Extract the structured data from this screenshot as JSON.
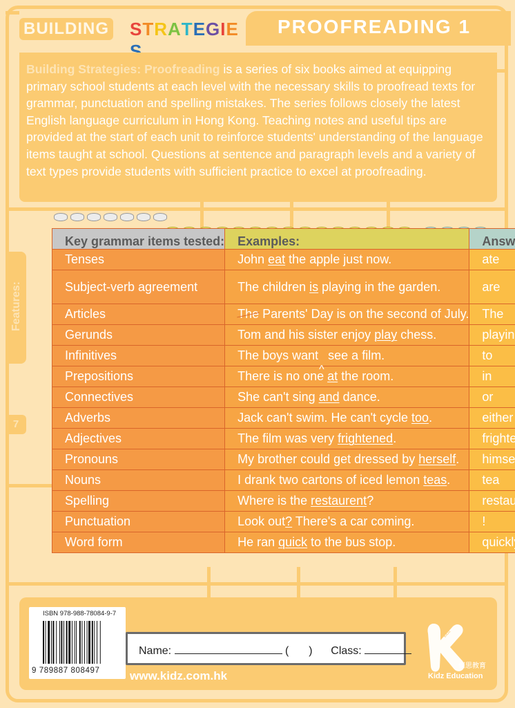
{
  "header": {
    "brand_part1": "BUILDING",
    "brand_part2_letters": [
      "S",
      "T",
      "R",
      "A",
      "T",
      "E",
      "G",
      "I",
      "E",
      "S"
    ],
    "brand_part2_colors": [
      "#e8453c",
      "#f28b26",
      "#f5c518",
      "#7cc242",
      "#2eb6c8",
      "#2b6fb6",
      "#6c4fa3",
      "#e8453c",
      "#f28b26",
      "#2b6fb6"
    ],
    "title": "PROOFREADING 1"
  },
  "intro": {
    "lead": "Building Strategies: Proofreading",
    "text": " is a series of six books aimed at equipping primary school students at each level with the necessary skills to proofread texts for grammar, punctuation and spelling mistakes. The series follows closely the latest English language curriculum in Hong Kong. Teaching notes and useful tips are provided at the start of each unit to reinforce students' understanding of the language items taught at school. Questions at sentence and paragraph levels and a variety of text types provide students with sufficient practice to excel at proofreading."
  },
  "side": {
    "features_label": "Features:",
    "page_number": "7"
  },
  "table": {
    "headers": {
      "key": "Key grammar items tested:",
      "examples": "Examples:",
      "answers": "Answers"
    },
    "rows": [
      {
        "item": "Tenses",
        "pre": "John ",
        "mark": "eat",
        "post": " the apple just now.",
        "answer": "ate",
        "style": "u"
      },
      {
        "item": "Subject-verb agreement",
        "pre": "The children ",
        "mark": "is",
        "post": " playing in the garden.",
        "answer": "are",
        "style": "u"
      },
      {
        "item": "Articles",
        "pre": "",
        "mark": "The",
        "post": " Parents' Day is on the second of July.",
        "answer": "The",
        "style": "strike"
      },
      {
        "item": "Gerunds",
        "pre": "Tom and his sister enjoy ",
        "mark": "play",
        "post": " chess.",
        "answer": "playing",
        "style": "u"
      },
      {
        "item": "Infinitives",
        "pre": "The boys want",
        "mark": "",
        "post": "see a film.",
        "answer": "to",
        "style": "caret"
      },
      {
        "item": "Prepositions",
        "pre": "There is no one ",
        "mark": "at",
        "post": " the room.",
        "answer": "in",
        "style": "u"
      },
      {
        "item": "Connectives",
        "pre": "She can't sing ",
        "mark": "and",
        "post": " dance.",
        "answer": "or",
        "style": "u"
      },
      {
        "item": "Adverbs",
        "pre": "Jack can't swim. He can't cycle ",
        "mark": "too",
        "post": ".",
        "answer": "either",
        "style": "u"
      },
      {
        "item": "Adjectives",
        "pre": "The film was very ",
        "mark": "frightened",
        "post": ".",
        "answer": "frightening",
        "style": "u"
      },
      {
        "item": "Pronouns",
        "pre": "My brother could get dressed by ",
        "mark": "herself",
        "post": ".",
        "answer": "himself",
        "style": "u"
      },
      {
        "item": "Nouns",
        "pre": "I drank two cartons of iced lemon ",
        "mark": "teas",
        "post": ".",
        "answer": "tea",
        "style": "u"
      },
      {
        "item": "Spelling",
        "pre": "Where is the ",
        "mark": "restaurent",
        "post": "?",
        "answer": "restaurant",
        "style": "u"
      },
      {
        "item": "Punctuation",
        "pre": "Look out",
        "mark": "?",
        "post": " There's a car coming.",
        "answer": "!",
        "style": "u"
      },
      {
        "item": "Word form",
        "pre": "He ran ",
        "mark": "quick",
        "post": " to the bus stop.",
        "answer": "quickly",
        "style": "u"
      }
    ]
  },
  "footer": {
    "isbn": "ISBN 978-988-78084-9-7",
    "barcode_digits": "9  789887  808497",
    "name_label": "Name:",
    "paren_open": "(",
    "paren_close": ")",
    "class_label": "Class:",
    "url": "www.kidz.com.hk",
    "logo_small": "kidz",
    "publisher_cn": "傑思教育",
    "publisher_en": "Kidz Education"
  },
  "colors": {
    "frame": "#fbcb72",
    "background": "#fde4b5",
    "col_item": "#f59a45",
    "col_example": "#f7a544",
    "col_answer": "#fbbe46"
  }
}
